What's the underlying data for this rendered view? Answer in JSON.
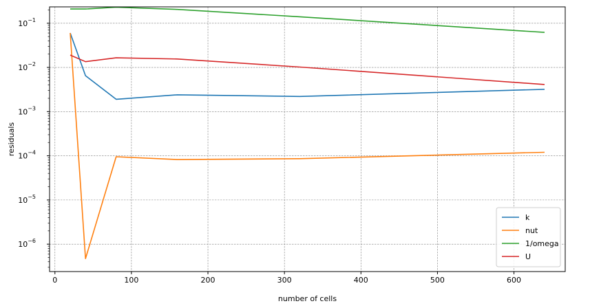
{
  "chart_data": {
    "type": "line",
    "xlabel": "number of cells",
    "ylabel": "residuals",
    "xlim": [
      -7,
      667
    ],
    "ylim_log10": [
      -6.62,
      -0.63
    ],
    "yscale": "log",
    "grid": true,
    "legend_position": "lower-right",
    "x_ticks": [
      0,
      100,
      200,
      300,
      400,
      500,
      600
    ],
    "y_ticks": [
      {
        "base": "10",
        "exp": "−6",
        "value": 1e-06
      },
      {
        "base": "10",
        "exp": "−5",
        "value": 1e-05
      },
      {
        "base": "10",
        "exp": "−4",
        "value": 0.0001
      },
      {
        "base": "10",
        "exp": "−3",
        "value": 0.001
      },
      {
        "base": "10",
        "exp": "−2",
        "value": 0.01
      },
      {
        "base": "10",
        "exp": "−1",
        "value": 0.1
      }
    ],
    "x": [
      20,
      40,
      80,
      160,
      320,
      640
    ],
    "series": [
      {
        "name": "k",
        "color": "#1f77b4",
        "values": [
          0.06,
          0.0065,
          0.0019,
          0.0024,
          0.0022,
          0.0032
        ]
      },
      {
        "name": "nut",
        "color": "#ff7f0e",
        "values": [
          0.06,
          4.7e-07,
          9.5e-05,
          8.2e-05,
          8.6e-05,
          0.00012
        ]
      },
      {
        "name": "1/omega",
        "color": "#2ca02c",
        "values": [
          0.21,
          0.21,
          0.23,
          0.205,
          0.14,
          0.062
        ]
      },
      {
        "name": "U",
        "color": "#d62728",
        "values": [
          0.019,
          0.0135,
          0.0165,
          0.0155,
          0.0102,
          0.0041
        ]
      }
    ]
  }
}
